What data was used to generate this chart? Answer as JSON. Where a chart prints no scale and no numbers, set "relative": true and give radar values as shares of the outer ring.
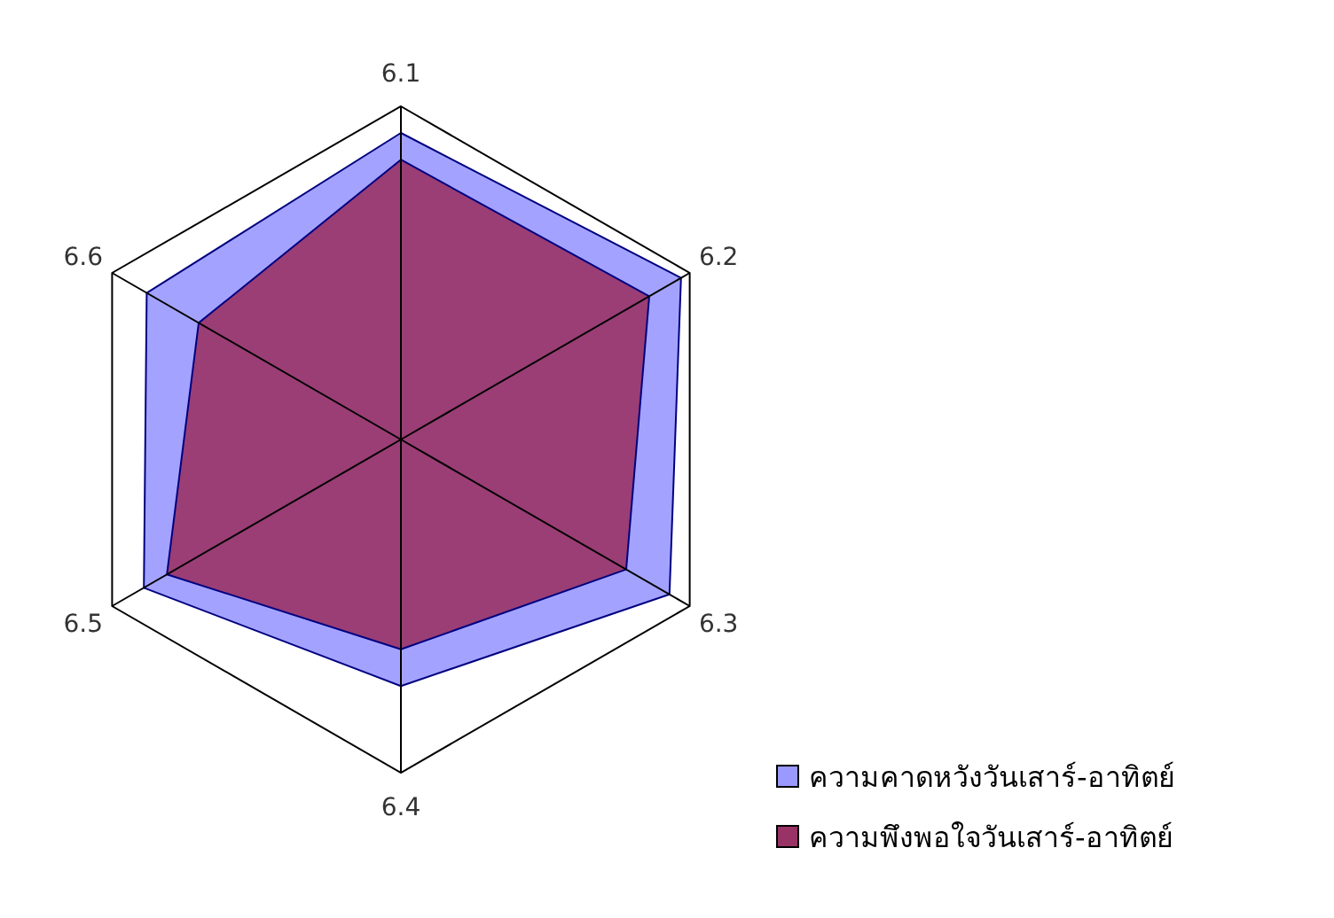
{
  "chart_data": {
    "type": "radar",
    "relative": true,
    "categories": [
      "6.1",
      "6.2",
      "6.3",
      "6.4",
      "6.5",
      "6.6"
    ],
    "legend": "bottom right",
    "series": [
      {
        "name": "ความคาดหวังวันเสาร์-อาทิตย์",
        "color": "#9999ff",
        "values": [
          0.92,
          0.97,
          0.93,
          0.74,
          0.89,
          0.88
        ]
      },
      {
        "name": "ความพึงพอใจวันเสาร์-อาทิตย์",
        "color": "#993366",
        "values": [
          0.84,
          0.86,
          0.78,
          0.63,
          0.81,
          0.7
        ]
      }
    ]
  }
}
